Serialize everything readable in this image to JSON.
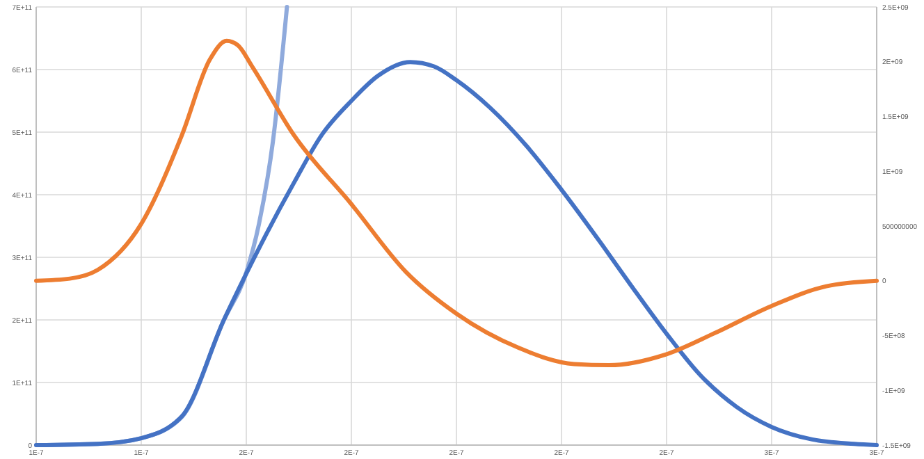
{
  "chart_data": {
    "type": "line",
    "grid": true,
    "line_style": "solid",
    "xlim": [
      1e-07,
      3e-07
    ],
    "xticks": [
      {
        "value": 1e-07,
        "label": "1E-7"
      },
      {
        "value": 1.25e-07,
        "label": "1E-7"
      },
      {
        "value": 1.5e-07,
        "label": "2E-7"
      },
      {
        "value": 1.75e-07,
        "label": "2E-7"
      },
      {
        "value": 2e-07,
        "label": "2E-7"
      },
      {
        "value": 2.25e-07,
        "label": "2E-7"
      },
      {
        "value": 2.5e-07,
        "label": "2E-7"
      },
      {
        "value": 2.75e-07,
        "label": "3E-7"
      },
      {
        "value": 3e-07,
        "label": "3E-7"
      }
    ],
    "ylim": [
      0,
      700000000000.0
    ],
    "yticks": [
      0,
      {
        "value": 100000000000.0,
        "label": "1E+11"
      },
      {
        "value": 200000000000.0,
        "label": "2E+11"
      },
      {
        "value": 300000000000.0,
        "label": "3E+11"
      },
      {
        "value": 400000000000.0,
        "label": "4E+11"
      },
      {
        "value": 500000000000.0,
        "label": "5E+11"
      },
      {
        "value": 600000000000.0,
        "label": "6E+11"
      },
      {
        "value": 700000000000.0,
        "label": "7E+11"
      }
    ],
    "y2lim": [
      -1500000000.0,
      2500000000.0
    ],
    "y2ticks": [
      {
        "value": -1500000000.0,
        "label": "-1.5E+09"
      },
      {
        "value": -1000000000.0,
        "label": "-1E+09"
      },
      {
        "value": -500000000.0,
        "label": "-5E+08"
      },
      0,
      500000000,
      {
        "value": 1000000000.0,
        "label": "1E+09"
      },
      {
        "value": 1500000000.0,
        "label": "1.5E+09"
      },
      {
        "value": 2000000000.0,
        "label": "2E+09"
      },
      {
        "value": 2500000000.0,
        "label": "2.5E+09"
      }
    ],
    "series": [
      {
        "color": "#8faadc",
        "x": [
          1e-07,
          1.1467e-07,
          1.25e-07,
          1.3467e-07,
          1.4467e-07,
          1.5e-07,
          1.53e-07,
          1.5633e-07,
          1.5967e-07
        ],
        "values": [
          0,
          2000000000.0,
          11000000000.0,
          45000000000.0,
          200000000000.0,
          276000000000.0,
          353000000000.0,
          485000000000.0,
          700000000000.0
        ]
      },
      {
        "color": "#4472c4",
        "x": [
          1e-07,
          1.1467e-07,
          1.25e-07,
          1.3467e-07,
          1.4467e-07,
          1.5e-07,
          1.5467e-07,
          1.6133e-07,
          1.68e-07,
          1.75e-07,
          1.8133e-07,
          1.89e-07,
          1.9467e-07,
          2e-07,
          2.08e-07,
          2.1667e-07,
          2.25e-07,
          2.3467e-07,
          2.4167e-07,
          2.5e-07,
          2.58e-07,
          2.6667e-07,
          2.75e-07,
          2.8467e-07,
          2.9467e-07,
          3e-07
        ],
        "values": [
          0,
          2000000000.0,
          11000000000.0,
          46000000000.0,
          200000000000.0,
          274000000000.0,
          336000000000.0,
          419000000000.0,
          496000000000.0,
          550000000000.0,
          590000000000.0,
          612000000000.0,
          605000000000.0,
          583000000000.0,
          539000000000.0,
          478000000000.0,
          408000000000.0,
          320000000000.0,
          254000000000.0,
          178000000000.0,
          112000000000.0,
          61000000000.0,
          29000000000.0,
          9000000000.0,
          2000000000.0,
          0
        ]
      },
      {
        "color": "#ed7d31",
        "axis": "y2",
        "x": [
          1e-07,
          1.08e-07,
          1.1467e-07,
          1.25e-07,
          1.3467e-07,
          1.4133e-07,
          1.4533e-07,
          1.48e-07,
          1.5133e-07,
          1.6133e-07,
          1.75e-07,
          1.88e-07,
          2e-07,
          2.1467e-07,
          2.28e-07,
          2.3633e-07,
          2.5e-07,
          2.6133e-07,
          2.75e-07,
          2.88e-07,
          3e-07
        ],
        "values": [
          0,
          20000000.0,
          100000000.0,
          520000000.0,
          1330000000.0,
          2020000000.0,
          2190000000.0,
          2150000000.0,
          1960000000.0,
          1330000000.0,
          700000000.0,
          80000000.0,
          -300000000.0,
          -610000000.0,
          -760000000.0,
          -770000000.0,
          -670000000.0,
          -480000000.0,
          -230000000.0,
          -50000000.0,
          0
        ]
      }
    ]
  }
}
